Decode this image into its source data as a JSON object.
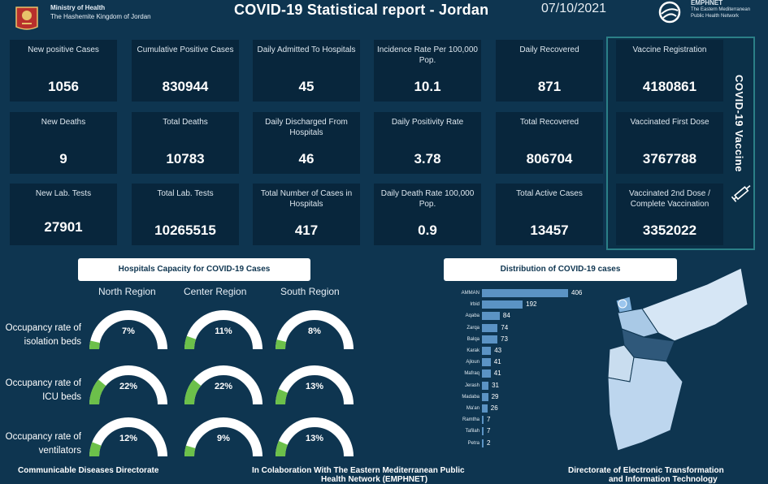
{
  "header": {
    "ministry_title": "Ministry of Health",
    "ministry_subtitle": "The Hashemite Kingdom of Jordan",
    "report_title": "COVID-19 Statistical report - Jordan",
    "date": "07/10/2021",
    "partner_name": "EMPHNET",
    "partner_subtitle_1": "The Eastern Mediterranean",
    "partner_subtitle_2": "Public Health Network"
  },
  "stats": [
    {
      "label": "New positive Cases",
      "value": "1056"
    },
    {
      "label": "Cumulative  Positive Cases",
      "value": "830944"
    },
    {
      "label": "Daily Admitted To Hospitals",
      "value": "45"
    },
    {
      "label": "Incidence Rate Per 100,000 Pop.",
      "value": "10.1"
    },
    {
      "label": "Daily Recovered",
      "value": "871"
    },
    {
      "label": "New Deaths",
      "value": "9"
    },
    {
      "label": "Total Deaths",
      "value": "10783"
    },
    {
      "label": "Daily Discharged From Hospitals",
      "value": "46"
    },
    {
      "label": "Daily Positivity Rate",
      "value": "3.78"
    },
    {
      "label": "Total Recovered",
      "value": "806704"
    },
    {
      "label": "New Lab. Tests",
      "value": "27901"
    },
    {
      "label": "Total Lab. Tests",
      "value": "10265515"
    },
    {
      "label": "Total Number of Cases in Hospitals",
      "value": "417"
    },
    {
      "label": "Daily Death Rate 100,000 Pop.",
      "value": "0.9"
    },
    {
      "label": "Total Active Cases",
      "value": "13457"
    }
  ],
  "vaccine": {
    "section_label": "COVID-19 Vaccine",
    "items": [
      {
        "label": "Vaccine Registration",
        "value": "4180861"
      },
      {
        "label": "Vaccinated First Dose",
        "value": "3767788"
      },
      {
        "label": "Vaccinated 2nd Dose / Complete Vaccination",
        "value": "3352022"
      }
    ]
  },
  "hospitals": {
    "title": "Hospitals Capacity for COVID-19 Cases",
    "regions": [
      "North Region",
      "Center Region",
      "South Region"
    ],
    "rows": [
      {
        "label": "Occupancy rate of isolation beds",
        "values": [
          "7%",
          "11%",
          "8%"
        ],
        "fractions": [
          0.07,
          0.11,
          0.08
        ]
      },
      {
        "label": "Occupancy rate of ICU beds",
        "values": [
          "22%",
          "22%",
          "13%"
        ],
        "fractions": [
          0.22,
          0.22,
          0.13
        ]
      },
      {
        "label": "Occupancy rate of ventilators",
        "values": [
          "12%",
          "9%",
          "13%"
        ],
        "fractions": [
          0.12,
          0.09,
          0.13
        ]
      }
    ],
    "colors": {
      "fill": "#6cc04a",
      "track": "#ffffff"
    }
  },
  "distribution": {
    "title": "Distribution of COVID-19 cases",
    "bar_color": "#5b93c4"
  },
  "chart_data": {
    "type": "bar",
    "orientation": "horizontal",
    "title": "Distribution of COVID-19 cases",
    "categories": [
      "AMMAN",
      "Irbid",
      "Aqaba",
      "Zarqa",
      "Balqa",
      "Karak",
      "Ajloun",
      "Mafraq",
      "Jerash",
      "Madaba",
      "Ma'an",
      "Ramtha",
      "Tafilah",
      "Petra"
    ],
    "values": [
      406,
      192,
      84,
      74,
      73,
      43,
      41,
      41,
      31,
      29,
      26,
      7,
      7,
      2
    ],
    "xlim": [
      0,
      406
    ]
  },
  "footer": {
    "left": "Communicable Diseases Directorate",
    "center_1": "In Colaboration With The Eastern Mediterranean Public",
    "center_2": "Health Network (EMPHNET)",
    "right_1": "Directorate of Electronic Transformation",
    "right_2": "and Information Technology"
  }
}
